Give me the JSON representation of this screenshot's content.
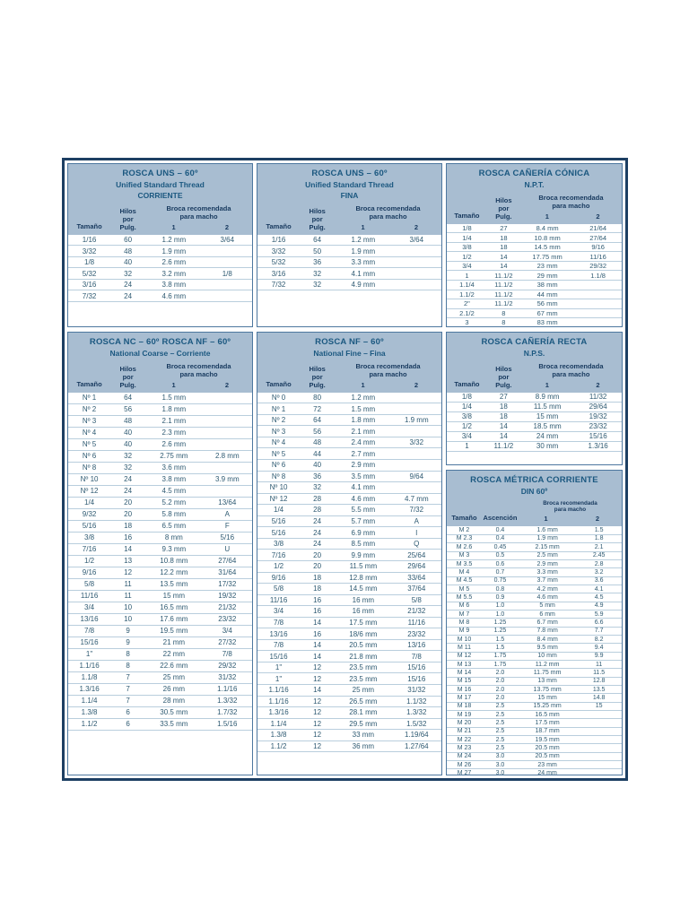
{
  "colors": {
    "outer_border": "#1d3f63",
    "header_bg": "#a8bdd1",
    "title_text": "#1b5880",
    "body_text": "#2e5a72"
  },
  "labels": {
    "size": "Tamaño",
    "tpi": [
      "Hilos",
      "por",
      "Pulg."
    ],
    "pitch": "Ascención",
    "drill": [
      "Broca recomendada",
      "para macho"
    ],
    "col1": "1",
    "col2": "2"
  },
  "tables": [
    {
      "name": "uns-corriente",
      "title_lines": [
        "ROSCA UNS – 60º",
        "Unified Standard Thread",
        "CORRIENTE"
      ],
      "rows": [
        [
          "1/16",
          "60",
          "1.2 mm",
          "3/64"
        ],
        [
          "3/32",
          "48",
          "1.9 mm",
          ""
        ],
        [
          "1/8",
          "40",
          "2.6 mm",
          ""
        ],
        [
          "5/32",
          "32",
          "3.2 mm",
          "1/8"
        ],
        [
          "3/16",
          "24",
          "3.8 mm",
          ""
        ],
        [
          "7/32",
          "24",
          "4.6 mm",
          ""
        ]
      ]
    },
    {
      "name": "uns-fina",
      "title_lines": [
        "ROSCA UNS – 60º",
        "Unified Standard Thread",
        "FINA"
      ],
      "rows": [
        [
          "1/16",
          "64",
          "1.2 mm",
          "3/64"
        ],
        [
          "3/32",
          "50",
          "1.9 mm",
          ""
        ],
        [
          "5/32",
          "36",
          "3.3 mm",
          ""
        ],
        [
          "3/16",
          "32",
          "4.1 mm",
          ""
        ],
        [
          "7/32",
          "32",
          "4.9 mm",
          ""
        ]
      ]
    },
    {
      "name": "caneria-conica-npt",
      "title_lines": [
        "ROSCA CAÑERÍA CÓNICA",
        "N.P.T."
      ],
      "rows": [
        [
          "1/8",
          "27",
          "8.4 mm",
          "21/64"
        ],
        [
          "1/4",
          "18",
          "10.8 mm",
          "27/64"
        ],
        [
          "3/8",
          "18",
          "14.5 mm",
          "9/16"
        ],
        [
          "1/2",
          "14",
          "17.75 mm",
          "11/16"
        ],
        [
          "3/4",
          "14",
          "23 mm",
          "29/32"
        ],
        [
          "1",
          "11.1/2",
          "29 mm",
          "1.1/8"
        ],
        [
          "1.1/4",
          "11.1/2",
          "38 mm",
          ""
        ],
        [
          "1.1/2",
          "11.1/2",
          "44 mm",
          ""
        ],
        [
          "2\"",
          "11.1/2",
          "56 mm",
          ""
        ],
        [
          "2.1/2",
          "8",
          "67 mm",
          ""
        ],
        [
          "3",
          "8",
          "83 mm",
          ""
        ]
      ]
    },
    {
      "name": "nc-national-coarse",
      "title_lines": [
        "ROSCA NC – 60º ROSCA NF – 60º",
        "National Coarse – Corriente"
      ],
      "rows": [
        [
          "Nº 1",
          "64",
          "1.5 mm",
          ""
        ],
        [
          "Nº 2",
          "56",
          "1.8 mm",
          ""
        ],
        [
          "Nº 3",
          "48",
          "2.1 mm",
          ""
        ],
        [
          "Nº 4",
          "40",
          "2.3 mm",
          ""
        ],
        [
          "Nº 5",
          "40",
          "2.6 mm",
          ""
        ],
        [
          "Nº 6",
          "32",
          "2.75 mm",
          "2.8 mm"
        ],
        [
          "Nº 8",
          "32",
          "3.6 mm",
          ""
        ],
        [
          "Nº 10",
          "24",
          "3.8 mm",
          "3.9 mm"
        ],
        [
          "Nº 12",
          "24",
          "4.5 mm",
          ""
        ],
        [
          "1/4",
          "20",
          "5.2 mm",
          "13/64"
        ],
        [
          "9/32",
          "20",
          "5.8 mm",
          "A"
        ],
        [
          "5/16",
          "18",
          "6.5 mm",
          "F"
        ],
        [
          "3/8",
          "16",
          "8 mm",
          "5/16"
        ],
        [
          "7/16",
          "14",
          "9.3 mm",
          "U"
        ],
        [
          "1/2",
          "13",
          "10.8 mm",
          "27/64"
        ],
        [
          "9/16",
          "12",
          "12.2 mm",
          "31/64"
        ],
        [
          "5/8",
          "11",
          "13.5 mm",
          "17/32"
        ],
        [
          "11/16",
          "11",
          "15 mm",
          "19/32"
        ],
        [
          "3/4",
          "10",
          "16.5 mm",
          "21/32"
        ],
        [
          "13/16",
          "10",
          "17.6 mm",
          "23/32"
        ],
        [
          "7/8",
          "9",
          "19.5 mm",
          "3/4"
        ],
        [
          "15/16",
          "9",
          "21 mm",
          "27/32"
        ],
        [
          "1\"",
          "8",
          "22 mm",
          "7/8"
        ],
        [
          "1.1/16",
          "8",
          "22.6 mm",
          "29/32"
        ],
        [
          "1.1/8",
          "7",
          "25 mm",
          "31/32"
        ],
        [
          "1.3/16",
          "7",
          "26 mm",
          "1.1/16"
        ],
        [
          "1.1/4",
          "7",
          "28 mm",
          "1.3/32"
        ],
        [
          "1.3/8",
          "6",
          "30.5 mm",
          "1.7/32"
        ],
        [
          "1.1/2",
          "6",
          "33.5 mm",
          "1.5/16"
        ]
      ]
    },
    {
      "name": "nf-national-fine",
      "title_lines": [
        "ROSCA NF – 60º",
        "National Fine – Fina"
      ],
      "rows": [
        [
          "Nº 0",
          "80",
          "1.2 mm",
          ""
        ],
        [
          "Nº 1",
          "72",
          "1.5 mm",
          ""
        ],
        [
          "Nº 2",
          "64",
          "1.8 mm",
          "1.9 mm"
        ],
        [
          "Nº 3",
          "56",
          "2.1 mm",
          ""
        ],
        [
          "Nº 4",
          "48",
          "2.4 mm",
          "3/32"
        ],
        [
          "Nº 5",
          "44",
          "2.7 mm",
          ""
        ],
        [
          "Nº 6",
          "40",
          "2.9 mm",
          ""
        ],
        [
          "Nº 8",
          "36",
          "3.5 mm",
          "9/64"
        ],
        [
          "Nº 10",
          "32",
          "4.1 mm",
          ""
        ],
        [
          "Nº 12",
          "28",
          "4.6 mm",
          "4.7 mm"
        ],
        [
          "1/4",
          "28",
          "5.5 mm",
          "7/32"
        ],
        [
          "5/16",
          "24",
          "5.7 mm",
          "A"
        ],
        [
          "5/16",
          "24",
          "6.9 mm",
          "I"
        ],
        [
          "3/8",
          "24",
          "8.5 mm",
          "Q"
        ],
        [
          "7/16",
          "20",
          "9.9 mm",
          "25/64"
        ],
        [
          "1/2",
          "20",
          "11.5 mm",
          "29/64"
        ],
        [
          "9/16",
          "18",
          "12.8 mm",
          "33/64"
        ],
        [
          "5/8",
          "18",
          "14.5 mm",
          "37/64"
        ],
        [
          "11/16",
          "16",
          "16 mm",
          "5/8"
        ],
        [
          "3/4",
          "16",
          "16 mm",
          "21/32"
        ],
        [
          "7/8",
          "14",
          "17.5 mm",
          "11/16"
        ],
        [
          "13/16",
          "16",
          "18/6 mm",
          "23/32"
        ],
        [
          "7/8",
          "14",
          "20.5 mm",
          "13/16"
        ],
        [
          "15/16",
          "14",
          "21.8 mm",
          "7/8"
        ],
        [
          "1\"",
          "12",
          "23.5 mm",
          "15/16"
        ],
        [
          "1\"",
          "12",
          "23.5 mm",
          "15/16"
        ],
        [
          "1.1/16",
          "14",
          "25 mm",
          "31/32"
        ],
        [
          "1.1/16",
          "12",
          "26.5 mm",
          "1.1/32"
        ],
        [
          "1.3/16",
          "12",
          "28.1 mm",
          "1.3/32"
        ],
        [
          "1.1/4",
          "12",
          "29.5 mm",
          "1.5/32"
        ],
        [
          "1.3/8",
          "12",
          "33 mm",
          "1.19/64"
        ],
        [
          "1.1/2",
          "12",
          "36 mm",
          "1.27/64"
        ]
      ]
    },
    {
      "name": "caneria-recta-nps",
      "title_lines": [
        "ROSCA CAÑERÍA RECTA",
        "N.P.S."
      ],
      "rows": [
        [
          "1/8",
          "27",
          "8.9 mm",
          "11/32"
        ],
        [
          "1/4",
          "18",
          "11.5 mm",
          "29/64"
        ],
        [
          "3/8",
          "18",
          "15 mm",
          "19/32"
        ],
        [
          "1/2",
          "14",
          "18.5 mm",
          "23/32"
        ],
        [
          "3/4",
          "14",
          "24 mm",
          "15/16"
        ],
        [
          "1",
          "11.1/2",
          "30 mm",
          "1.3/16"
        ]
      ]
    },
    {
      "name": "metrica-corriente-din",
      "title_lines": [
        "ROSCA MÉTRICA CORRIENTE",
        "DIN 60º"
      ],
      "rows": [
        [
          "M 2",
          "0.4",
          "1.6 mm",
          "1.5"
        ],
        [
          "M 2.3",
          "0.4",
          "1.9 mm",
          "1.8"
        ],
        [
          "M 2.6",
          "0.45",
          "2.15 mm",
          "2.1"
        ],
        [
          "M 3",
          "0.5",
          "2.5 mm",
          "2.45"
        ],
        [
          "M 3.5",
          "0.6",
          "2.9 mm",
          "2.8"
        ],
        [
          "M 4",
          "0.7",
          "3.3 mm",
          "3.2"
        ],
        [
          "M 4.5",
          "0.75",
          "3.7 mm",
          "3.6"
        ],
        [
          "M 5",
          "0.8",
          "4.2 mm",
          "4.1"
        ],
        [
          "M 5.5",
          "0.9",
          "4.6 mm",
          "4.5"
        ],
        [
          "M 6",
          "1.0",
          "5 mm",
          "4.9"
        ],
        [
          "M 7",
          "1.0",
          "6 mm",
          "5.9"
        ],
        [
          "M 8",
          "1.25",
          "6.7 mm",
          "6.6"
        ],
        [
          "M 9",
          "1.25",
          "7.8 mm",
          "7.7"
        ],
        [
          "M 10",
          "1.5",
          "8.4 mm",
          "8.2"
        ],
        [
          "M 11",
          "1.5",
          "9.5 mm",
          "9.4"
        ],
        [
          "M 12",
          "1.75",
          "10 mm",
          "9.9"
        ],
        [
          "M 13",
          "1.75",
          "11.2 mm",
          "11"
        ],
        [
          "M 14",
          "2.0",
          "11.75 mm",
          "11.5"
        ],
        [
          "M 15",
          "2.0",
          "13 mm",
          "12.8"
        ],
        [
          "M 16",
          "2.0",
          "13.75 mm",
          "13.5"
        ],
        [
          "M 17",
          "2.0",
          "15 mm",
          "14.8"
        ],
        [
          "M 18",
          "2.5",
          "15.25 mm",
          "15"
        ],
        [
          "M 19",
          "2.5",
          "16.5 mm",
          ""
        ],
        [
          "M 20",
          "2.5",
          "17.5 mm",
          ""
        ],
        [
          "M 21",
          "2.5",
          "18.7 mm",
          ""
        ],
        [
          "M 22",
          "2.5",
          "19.5 mm",
          ""
        ],
        [
          "M 23",
          "2.5",
          "20.5 mm",
          ""
        ],
        [
          "M 24",
          "3.0",
          "20.5 mm",
          ""
        ],
        [
          "M 26",
          "3.0",
          "23 mm",
          ""
        ],
        [
          "M 27",
          "3.0",
          "24 mm",
          ""
        ]
      ]
    }
  ]
}
